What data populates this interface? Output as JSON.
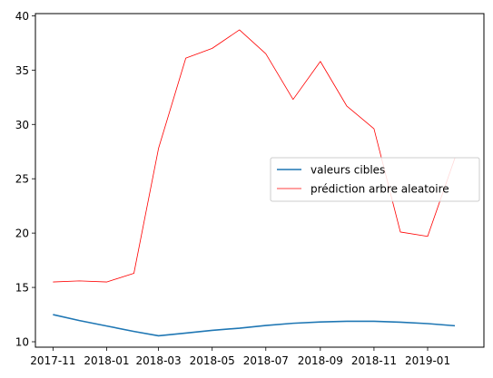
{
  "chart_data": {
    "type": "line",
    "title": "",
    "xlabel": "",
    "ylabel": "",
    "x": [
      "2017-11",
      "2017-12",
      "2018-01",
      "2018-02",
      "2018-03",
      "2018-04",
      "2018-05",
      "2018-06",
      "2018-07",
      "2018-08",
      "2018-09",
      "2018-10",
      "2018-11",
      "2018-12",
      "2019-01",
      "2019-02"
    ],
    "xticks": [
      "2017-11",
      "2018-01",
      "2018-03",
      "2018-05",
      "2018-07",
      "2018-09",
      "2018-11",
      "2019-01"
    ],
    "yticks": [
      10,
      15,
      20,
      25,
      30,
      35,
      40
    ],
    "ylim": [
      9.5,
      40.2
    ],
    "xlim": [
      "2017-10-12",
      "2019-03-06"
    ],
    "grid": false,
    "legend_position": "center-right",
    "series": [
      {
        "name": "valeurs cibles",
        "color": "#1f77b4",
        "values": [
          12.5,
          11.95,
          11.45,
          10.95,
          10.55,
          10.8,
          11.05,
          11.25,
          11.5,
          11.7,
          11.82,
          11.88,
          11.88,
          11.8,
          11.67,
          11.47
        ]
      },
      {
        "name": "prédiction arbre aleatoire",
        "color": "#ff0000",
        "values": [
          15.5,
          15.6,
          15.5,
          16.3,
          27.8,
          36.1,
          37.0,
          38.7,
          36.5,
          32.3,
          35.8,
          31.7,
          29.6,
          20.1,
          19.7,
          26.9
        ]
      }
    ]
  }
}
